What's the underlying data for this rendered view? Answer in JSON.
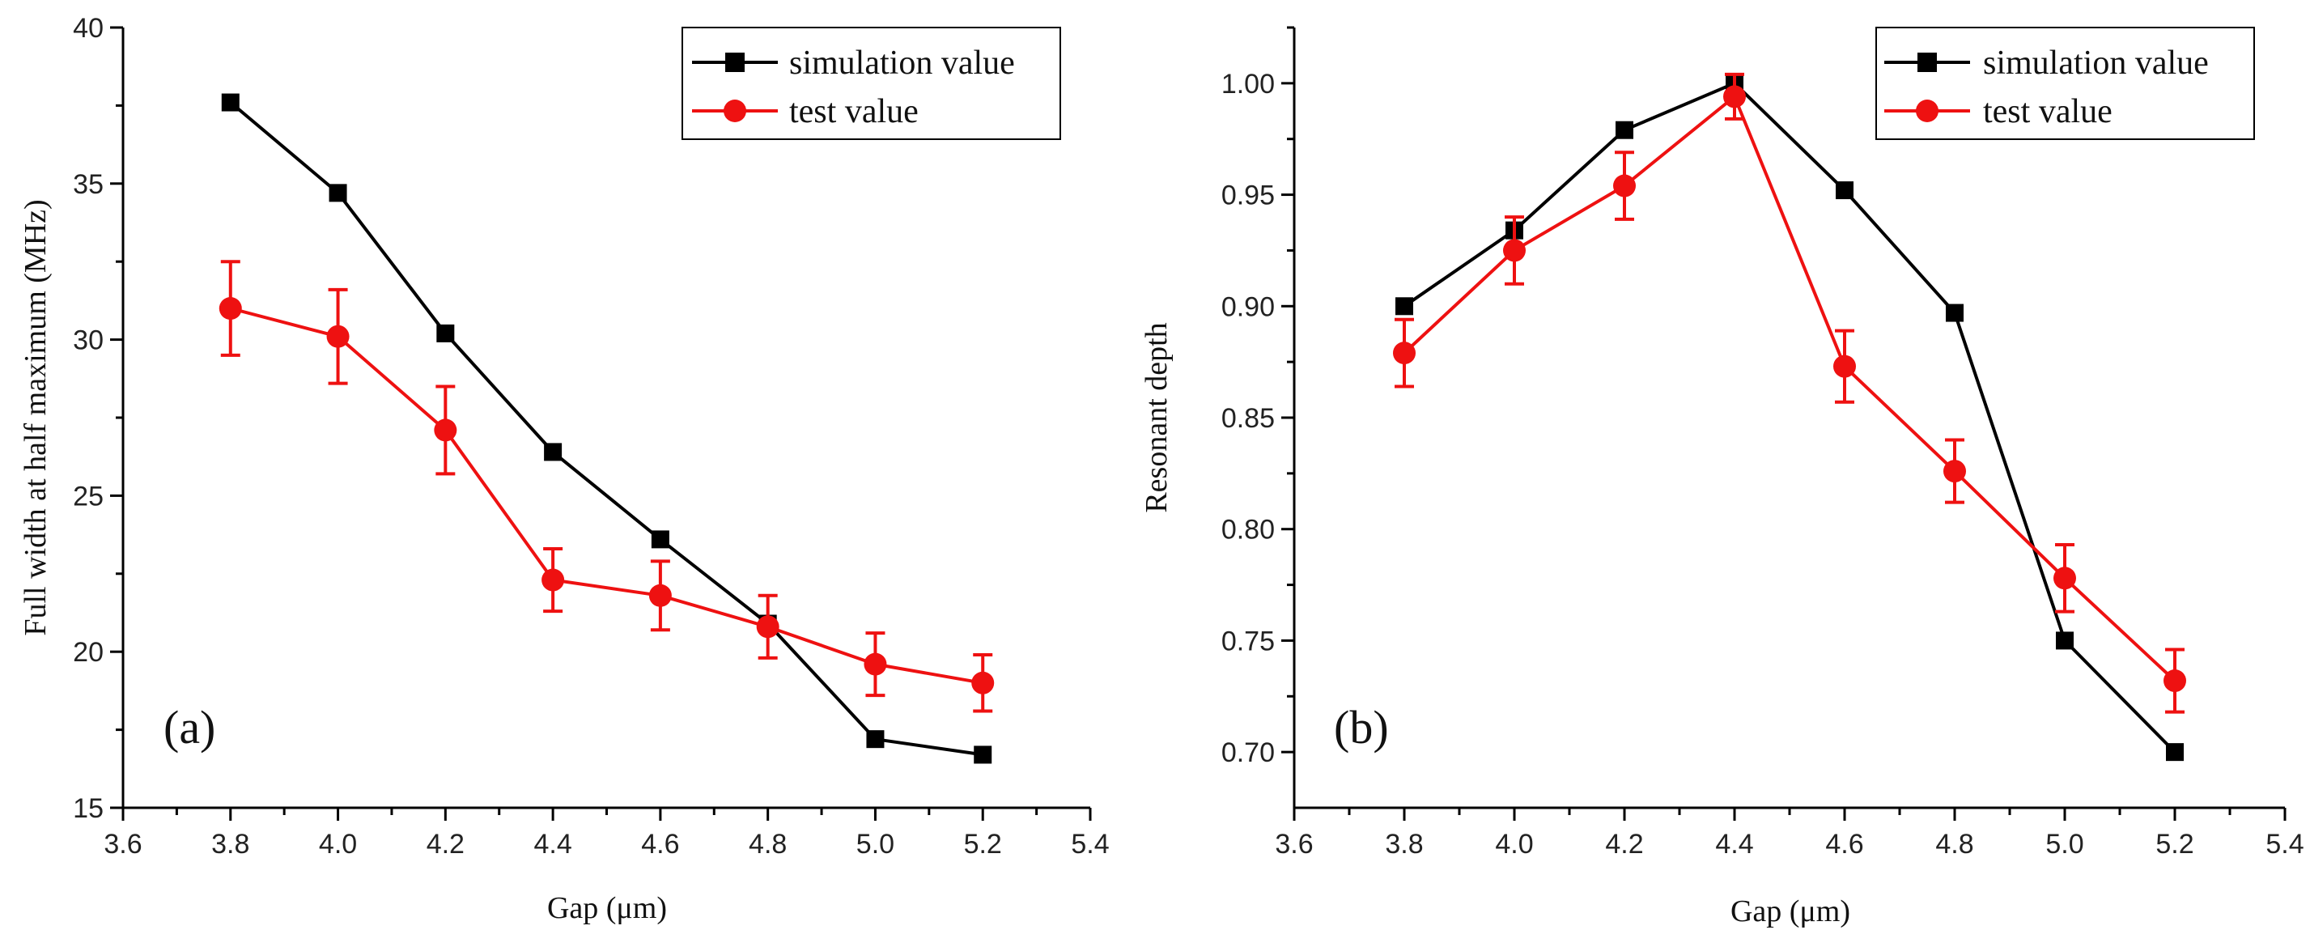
{
  "chart_data": [
    {
      "type": "line",
      "panel_label": "(a)",
      "xlabel": "Gap (μm)",
      "ylabel": "Full width at half maximum (MHz)",
      "xlim": [
        3.6,
        5.4
      ],
      "ylim": [
        15,
        40
      ],
      "x_ticks": [
        3.6,
        3.8,
        4.0,
        4.2,
        4.4,
        4.6,
        4.8,
        5.0,
        5.2,
        5.4
      ],
      "x_tick_labels": [
        "3.6",
        "3.8",
        "4.0",
        "4.2",
        "4.4",
        "4.6",
        "4.8",
        "5.0",
        "5.2",
        "5.4"
      ],
      "y_ticks": [
        15,
        20,
        25,
        30,
        35,
        40
      ],
      "y_tick_labels": [
        "15",
        "20",
        "25",
        "30",
        "35",
        "40"
      ],
      "legend_position": "top-right",
      "x": [
        3.8,
        4.0,
        4.2,
        4.4,
        4.6,
        4.8,
        5.0,
        5.2
      ],
      "series": [
        {
          "name": "simulation value",
          "color": "#000000",
          "marker": "square",
          "values": [
            37.6,
            34.7,
            30.2,
            26.4,
            23.6,
            20.9,
            17.2,
            16.7
          ]
        },
        {
          "name": "test value",
          "color": "#ee1111",
          "marker": "circle",
          "values": [
            31.0,
            30.1,
            27.1,
            22.3,
            21.8,
            20.8,
            19.6,
            19.0
          ],
          "errors": [
            1.5,
            1.5,
            1.4,
            1.0,
            1.1,
            1.0,
            1.0,
            0.9
          ]
        }
      ]
    },
    {
      "type": "line",
      "panel_label": "(b)",
      "xlabel": "Gap (μm)",
      "ylabel": "Resonant depth",
      "xlim": [
        3.6,
        5.4
      ],
      "ylim": [
        0.675,
        1.025
      ],
      "x_ticks": [
        3.6,
        3.8,
        4.0,
        4.2,
        4.4,
        4.6,
        4.8,
        5.0,
        5.2,
        5.4
      ],
      "x_tick_labels": [
        "3.6",
        "3.8",
        "4.0",
        "4.2",
        "4.4",
        "4.6",
        "4.8",
        "5.0",
        "5.2",
        "5.4"
      ],
      "y_ticks": [
        0.7,
        0.75,
        0.8,
        0.85,
        0.9,
        0.95,
        1.0
      ],
      "y_tick_labels": [
        "0.70",
        "0.75",
        "0.80",
        "0.85",
        "0.90",
        "0.95",
        "1.00"
      ],
      "legend_position": "top-right",
      "x": [
        3.8,
        4.0,
        4.2,
        4.4,
        4.6,
        4.8,
        5.0,
        5.2
      ],
      "series": [
        {
          "name": "simulation value",
          "color": "#000000",
          "marker": "square",
          "values": [
            0.9,
            0.934,
            0.979,
            1.0,
            0.952,
            0.897,
            0.75,
            0.7
          ]
        },
        {
          "name": "test value",
          "color": "#ee1111",
          "marker": "circle",
          "values": [
            0.879,
            0.925,
            0.954,
            0.994,
            0.873,
            0.826,
            0.778,
            0.732
          ],
          "errors": [
            0.015,
            0.015,
            0.015,
            0.01,
            0.016,
            0.014,
            0.015,
            0.014
          ]
        }
      ]
    }
  ]
}
